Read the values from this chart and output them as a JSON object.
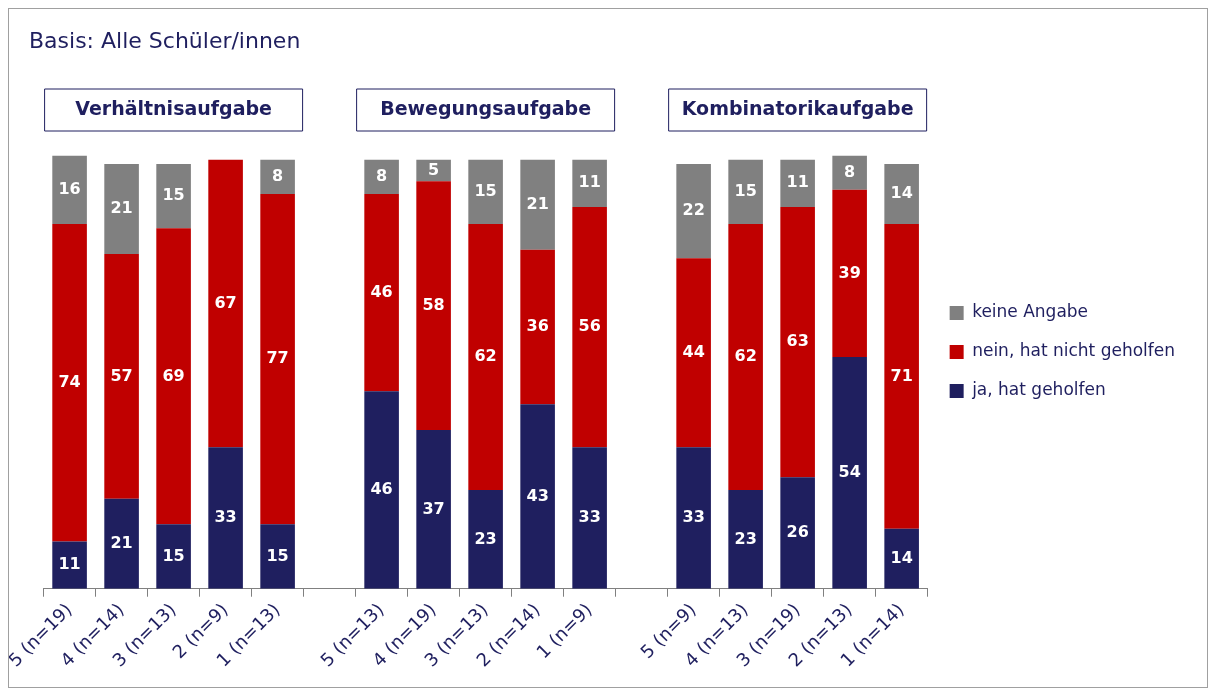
{
  "chart_data": {
    "type": "bar",
    "title": "Basis: Alle Schüler/innen",
    "stacked": true,
    "data_labels": true,
    "legend": "right",
    "annotations": [
      "Verhältnisaufgabe",
      "Bewegungsaufgabe",
      "Kombinatorikaufgabe"
    ],
    "categories": [
      "5 (n=19)",
      "4 (n=14)",
      "3 (n=13)",
      "2 (n=9)",
      "1 (n=13)",
      null,
      "5 (n=13)",
      "4 (n=19)",
      "3 (n=13)",
      "2 (n=14)",
      "1 (n=9)",
      null,
      "5 (n=9)",
      "4 (n=13)",
      "3 (n=19)",
      "2 (n=13)",
      "1 (n=14)"
    ],
    "series": [
      {
        "name": "ja, hat geholfen",
        "color": "#1f1f5f",
        "values": [
          11,
          21,
          15,
          33,
          15,
          null,
          46,
          37,
          23,
          43,
          33,
          null,
          33,
          23,
          26,
          54,
          14
        ]
      },
      {
        "name": "nein, hat nicht geholfen",
        "color": "#c00000",
        "values": [
          74,
          57,
          69,
          67,
          77,
          null,
          46,
          58,
          62,
          36,
          56,
          null,
          44,
          62,
          63,
          39,
          71
        ]
      },
      {
        "name": "keine Angabe",
        "color": "#808080",
        "values": [
          16,
          21,
          15,
          null,
          8,
          null,
          8,
          5,
          15,
          21,
          11,
          null,
          22,
          15,
          11,
          8,
          14
        ]
      }
    ]
  }
}
